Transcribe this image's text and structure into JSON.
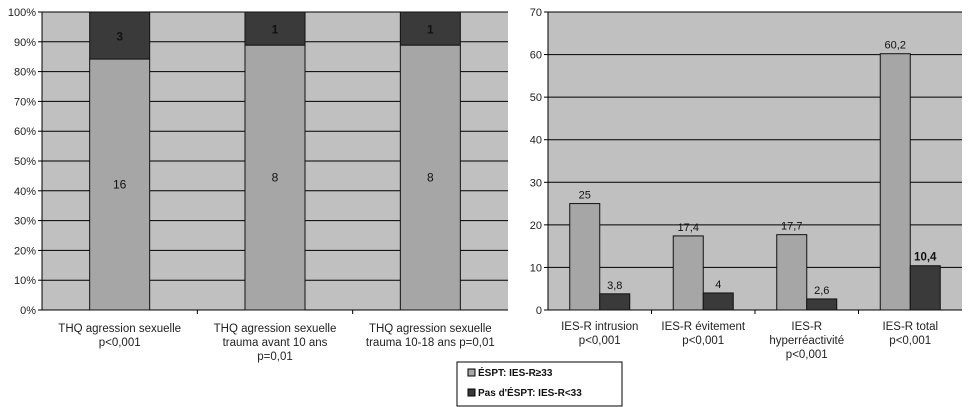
{
  "colors": {
    "plot_bg": "#c0c0c0",
    "light_bar": "#a6a6a6",
    "dark_bar": "#3a3a3a",
    "gridline": "#000000"
  },
  "chart_data": [
    {
      "type": "bar",
      "stacked": "percent",
      "ylim": [
        0,
        100
      ],
      "yticks": [
        "0%",
        "10%",
        "20%",
        "30%",
        "40%",
        "50%",
        "60%",
        "70%",
        "80%",
        "90%",
        "100%"
      ],
      "grid": true,
      "categories": [
        [
          "THQ agression sexuelle",
          "p<0,001"
        ],
        [
          "THQ agression sexuelle",
          "trauma avant 10 ans",
          "p=0,01"
        ],
        [
          "THQ agression sexuelle",
          "trauma 10-18 ans p=0,01"
        ]
      ],
      "series": [
        {
          "values": [
            16,
            8,
            8
          ],
          "labels": [
            "16",
            "8",
            "8"
          ]
        },
        {
          "values": [
            3,
            1,
            1
          ],
          "labels": [
            "3",
            "1",
            "1"
          ]
        }
      ]
    },
    {
      "type": "bar",
      "ylim": [
        0,
        70
      ],
      "yticks": [
        "0",
        "10",
        "20",
        "30",
        "40",
        "50",
        "60",
        "70"
      ],
      "grid": true,
      "legend": "bottom",
      "categories": [
        [
          "IES-R intrusion",
          "p<0,001"
        ],
        [
          "IES-R évitement",
          "p<0,001"
        ],
        [
          "IES-R",
          "hyperréactivité",
          "p<0,001"
        ],
        [
          "IES-R total",
          "p<0,001"
        ]
      ],
      "series": [
        {
          "name": "ÉSPT: IES-R≥33",
          "values": [
            25,
            17.4,
            17.7,
            60.2
          ],
          "labels": [
            "25",
            "17,4",
            "17,7",
            "60,2"
          ]
        },
        {
          "name": "Pas d'ÉSPT: IES-R<33",
          "values": [
            3.8,
            4,
            2.6,
            10.4
          ],
          "labels": [
            "3,8",
            "4",
            "2,6",
            "10,4"
          ]
        }
      ]
    }
  ]
}
